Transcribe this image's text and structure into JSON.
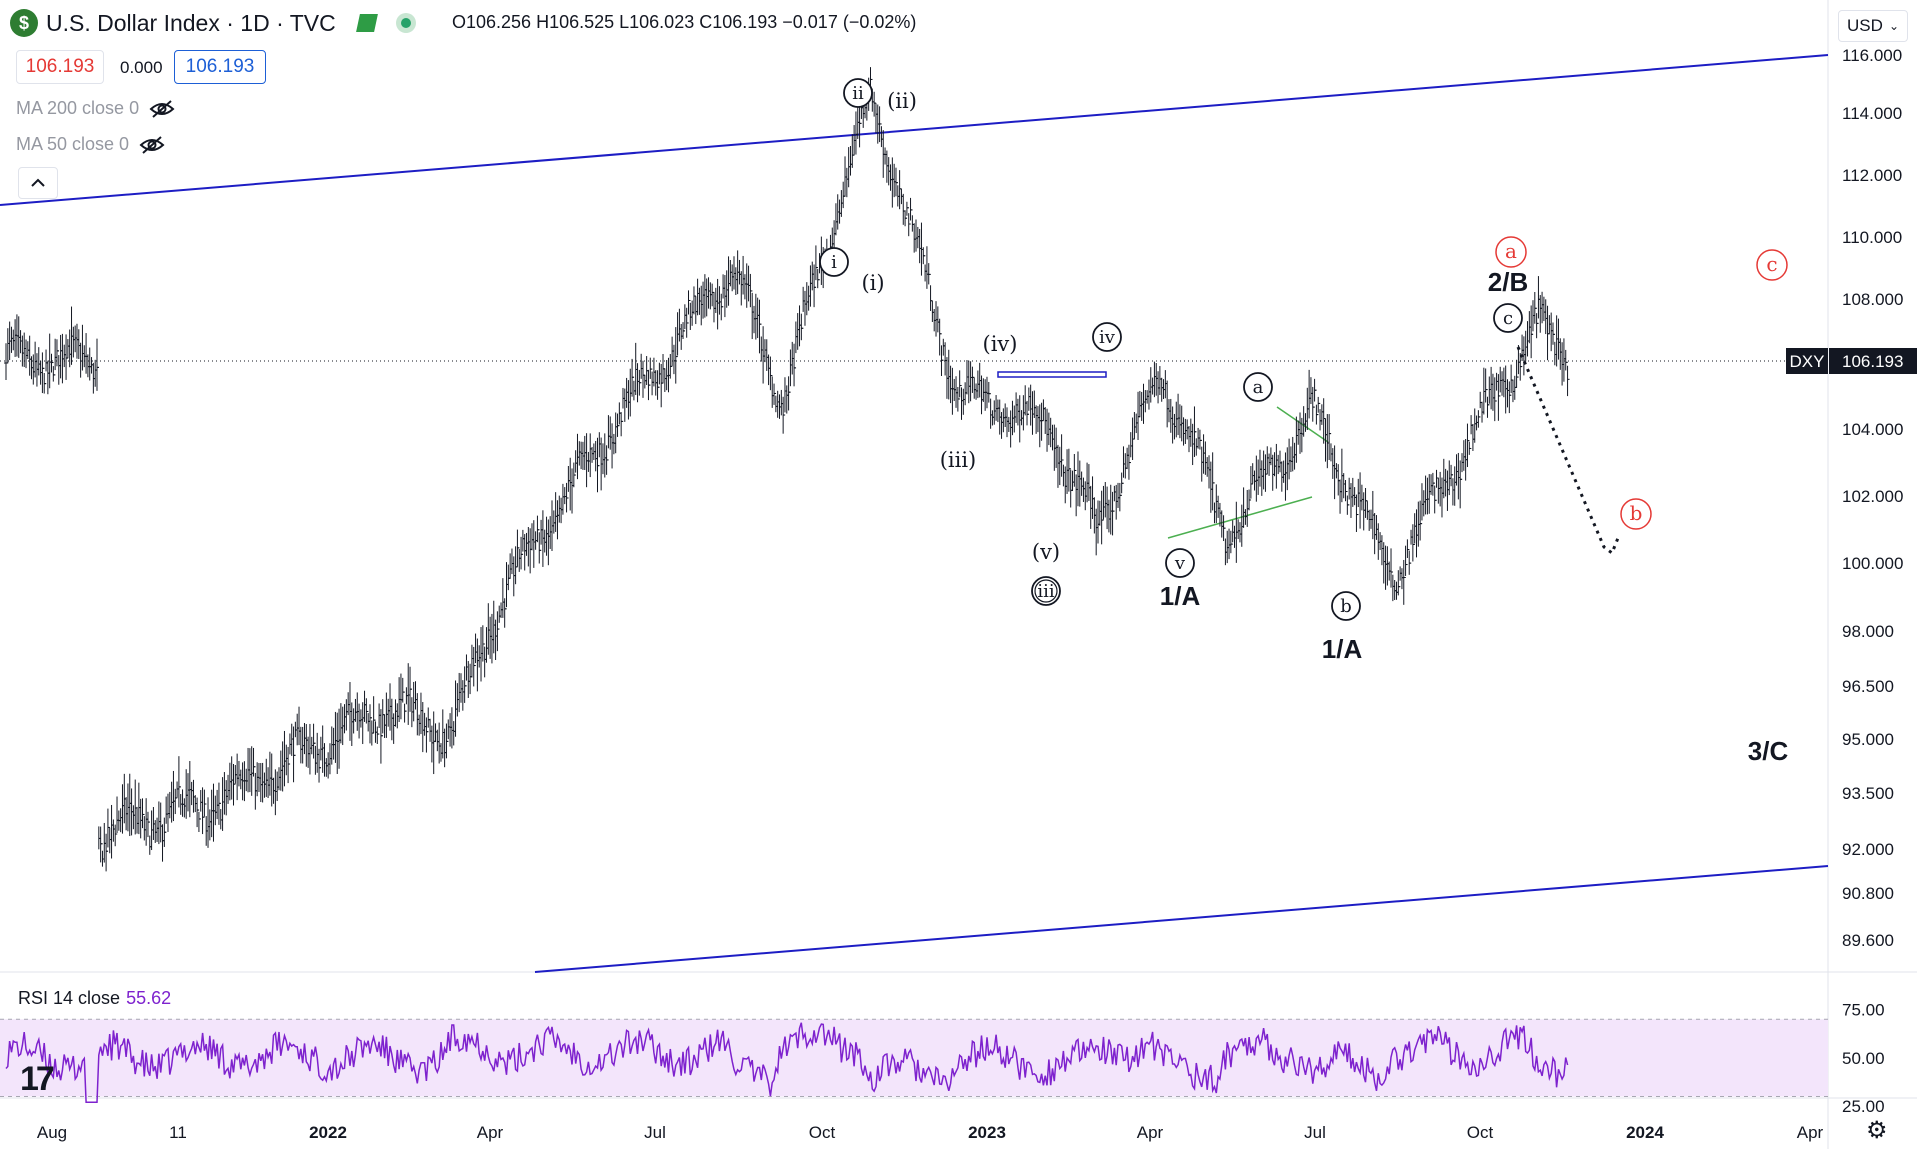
{
  "header": {
    "symbol_logo": "$",
    "title": "U.S. Dollar Index · 1D · TVC",
    "ohlc": "O106.256  H106.525  L106.023  C106.193  −0.017  (−0.02%)",
    "bid": "106.193",
    "spread": "0.000",
    "ask": "106.193",
    "icons": [
      "flag-icon",
      "market-open-dot-icon"
    ]
  },
  "indicators": {
    "ma200": "MA 200 close 0",
    "ma50": "MA 50 close 0",
    "rsi_name": "RSI 14 close",
    "rsi_value": "55.62"
  },
  "currency_select": {
    "value": "USD"
  },
  "symbol_tag": {
    "ticker": "DXY",
    "price": "106.193"
  },
  "chart_data": {
    "type": "ohlc-bar",
    "title": "U.S. Dollar Index · 1D · TVC",
    "price_axis": [
      "116.000",
      "114.000",
      "112.000",
      "110.000",
      "108.000",
      "106.193",
      "104.000",
      "102.000",
      "100.000",
      "98.000",
      "96.500",
      "95.000",
      "93.500",
      "92.000",
      "90.800",
      "89.600"
    ],
    "rsi_axis": [
      "75.00",
      "50.00",
      "25.00"
    ],
    "time_axis": [
      "Aug",
      "11",
      "2022",
      "Apr",
      "Jul",
      "Oct",
      "2023",
      "Apr",
      "Jul",
      "Oct",
      "2024",
      "Apr"
    ],
    "price_range": [
      88.8,
      117.0
    ],
    "series": [
      {
        "name": "DXY",
        "x": [
          "2021-07-26",
          "2021-09-27",
          "2022-01-03",
          "2022-02-07",
          "2022-03-07",
          "2022-05-16",
          "2022-07-14",
          "2022-08-10",
          "2022-09-28",
          "2022-11-15",
          "2023-01-03",
          "2023-02-01",
          "2023-03-08",
          "2023-04-14",
          "2023-05-31",
          "2023-07-14",
          "2023-10-03",
          "2023-10-20"
        ],
        "y": [
          92.4,
          93.2,
          95.9,
          95.2,
          99.0,
          104.8,
          109.0,
          104.9,
          114.6,
          105.2,
          104.2,
          101.0,
          105.8,
          100.8,
          104.6,
          99.6,
          107.3,
          106.2
        ]
      }
    ],
    "rsi": {
      "name": "RSI 14 close",
      "last": 55.62,
      "levels": [
        70,
        30
      ]
    },
    "annotations": {
      "wave_labels": [
        "ii",
        "(ii)",
        "i",
        "(i)",
        "(iv)",
        "iv",
        "(iii)",
        "(v)",
        "iii",
        "v",
        "1/A",
        "a",
        "b",
        "1/A",
        "c",
        "2/B",
        "3/C"
      ],
      "projection_labels": [
        "a",
        "b",
        "c"
      ],
      "projection_color": "#e53935",
      "channel_color": "#1d1dc4",
      "triangle_color": "#4caf50",
      "rsi_color": "#7e22ce",
      "bar_color": "#131722"
    }
  }
}
